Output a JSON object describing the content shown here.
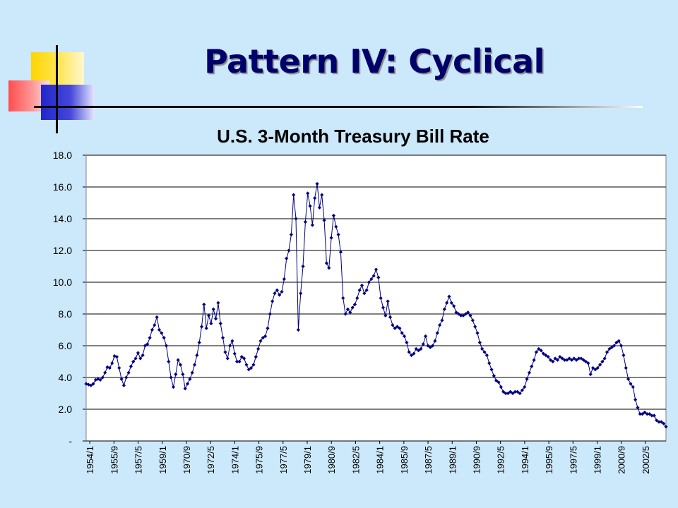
{
  "slide": {
    "title": "Pattern IV: Cyclical"
  },
  "colors": {
    "background": "#cce8fb",
    "title": "#00006a",
    "series": "#000080"
  },
  "chart_data": {
    "type": "line",
    "title": "U.S. 3-Month Treasury Bill Rate",
    "xlabel": "",
    "ylabel": "",
    "ylim": [
      0,
      18
    ],
    "yticks": [
      {
        "value": 0,
        "label": "-"
      },
      {
        "value": 2,
        "label": "2.0"
      },
      {
        "value": 4,
        "label": "4.0"
      },
      {
        "value": 6,
        "label": "6.0"
      },
      {
        "value": 8,
        "label": "8.0"
      },
      {
        "value": 10,
        "label": "10.0"
      },
      {
        "value": 12,
        "label": "12.0"
      },
      {
        "value": 14,
        "label": "14.0"
      },
      {
        "value": 16,
        "label": "16.0"
      },
      {
        "value": 18,
        "label": "18.0"
      }
    ],
    "xticks": [
      "1954/1",
      "1955/9",
      "1957/5",
      "1959/1",
      "1970/9",
      "1972/5",
      "1974/1",
      "1975/9",
      "1977/5",
      "1979/1",
      "1980/9",
      "1982/5",
      "1984/1",
      "1985/9",
      "1987/5",
      "1989/1",
      "1990/9",
      "1992/5",
      "1994/1",
      "1995/9",
      "1997/5",
      "1999/1",
      "2000/9",
      "2002/5"
    ],
    "grid": true,
    "legend": "none",
    "series": [
      {
        "marker": "diamond",
        "points": [
          [
            0,
            3.6
          ],
          [
            1,
            3.55
          ],
          [
            2,
            3.5
          ],
          [
            3,
            3.6
          ],
          [
            4,
            3.85
          ],
          [
            5,
            3.9
          ],
          [
            6,
            3.85
          ],
          [
            7,
            4.0
          ],
          [
            8,
            4.3
          ],
          [
            9,
            4.65
          ],
          [
            10,
            4.6
          ],
          [
            11,
            4.9
          ],
          [
            12,
            5.35
          ],
          [
            13,
            5.3
          ],
          [
            14,
            4.6
          ],
          [
            15,
            3.9
          ],
          [
            16,
            3.5
          ],
          [
            17,
            4.0
          ],
          [
            18,
            4.3
          ],
          [
            19,
            4.7
          ],
          [
            20,
            5.0
          ],
          [
            21,
            5.2
          ],
          [
            22,
            5.55
          ],
          [
            23,
            5.2
          ],
          [
            24,
            5.4
          ],
          [
            25,
            6.0
          ],
          [
            26,
            6.1
          ],
          [
            27,
            6.5
          ],
          [
            28,
            7.0
          ],
          [
            29,
            7.3
          ],
          [
            30,
            7.8
          ],
          [
            31,
            7.0
          ],
          [
            32,
            6.8
          ],
          [
            33,
            6.5
          ],
          [
            34,
            6.0
          ],
          [
            35,
            5.0
          ],
          [
            36,
            4.0
          ],
          [
            37,
            3.4
          ],
          [
            38,
            4.2
          ],
          [
            39,
            5.1
          ],
          [
            40,
            4.8
          ],
          [
            41,
            4.2
          ],
          [
            42,
            3.3
          ],
          [
            43,
            3.6
          ],
          [
            44,
            3.9
          ],
          [
            45,
            4.3
          ],
          [
            46,
            4.8
          ],
          [
            47,
            5.4
          ],
          [
            48,
            6.2
          ],
          [
            49,
            7.2
          ],
          [
            50,
            8.6
          ],
          [
            51,
            7.1
          ],
          [
            52,
            7.9
          ],
          [
            53,
            7.4
          ],
          [
            54,
            8.3
          ],
          [
            55,
            7.7
          ],
          [
            56,
            8.7
          ],
          [
            57,
            7.4
          ],
          [
            58,
            6.5
          ],
          [
            59,
            5.6
          ],
          [
            60,
            5.2
          ],
          [
            61,
            6.0
          ],
          [
            62,
            6.3
          ],
          [
            63,
            5.5
          ],
          [
            64,
            5.0
          ],
          [
            65,
            5.0
          ],
          [
            66,
            5.3
          ],
          [
            67,
            5.2
          ],
          [
            68,
            4.8
          ],
          [
            69,
            4.5
          ],
          [
            70,
            4.6
          ],
          [
            71,
            4.8
          ],
          [
            72,
            5.3
          ],
          [
            73,
            5.8
          ],
          [
            74,
            6.3
          ],
          [
            75,
            6.5
          ],
          [
            76,
            6.6
          ],
          [
            77,
            7.1
          ],
          [
            78,
            8.0
          ],
          [
            79,
            8.8
          ],
          [
            80,
            9.3
          ],
          [
            81,
            9.5
          ],
          [
            82,
            9.2
          ],
          [
            83,
            9.4
          ],
          [
            84,
            10.2
          ],
          [
            85,
            11.5
          ],
          [
            86,
            12.0
          ],
          [
            87,
            13.0
          ],
          [
            88,
            15.5
          ],
          [
            89,
            14.0
          ],
          [
            90,
            7.0
          ],
          [
            91,
            9.3
          ],
          [
            92,
            11.0
          ],
          [
            93,
            13.8
          ],
          [
            94,
            15.6
          ],
          [
            95,
            14.8
          ],
          [
            96,
            13.6
          ],
          [
            97,
            15.3
          ],
          [
            98,
            16.2
          ],
          [
            99,
            14.7
          ],
          [
            100,
            15.5
          ],
          [
            101,
            13.9
          ],
          [
            102,
            11.2
          ],
          [
            103,
            10.9
          ],
          [
            104,
            12.8
          ],
          [
            105,
            14.2
          ],
          [
            106,
            13.5
          ],
          [
            107,
            13.0
          ],
          [
            108,
            11.9
          ],
          [
            109,
            9.0
          ],
          [
            110,
            8.0
          ],
          [
            111,
            8.3
          ],
          [
            112,
            8.1
          ],
          [
            113,
            8.4
          ],
          [
            114,
            8.6
          ],
          [
            115,
            9.0
          ],
          [
            116,
            9.5
          ],
          [
            117,
            9.8
          ],
          [
            118,
            9.3
          ],
          [
            119,
            9.5
          ],
          [
            120,
            10.0
          ],
          [
            121,
            10.2
          ],
          [
            122,
            10.4
          ],
          [
            123,
            10.8
          ],
          [
            124,
            10.3
          ],
          [
            125,
            9.0
          ],
          [
            126,
            8.4
          ],
          [
            127,
            7.9
          ],
          [
            128,
            8.8
          ],
          [
            129,
            7.8
          ],
          [
            130,
            7.3
          ],
          [
            131,
            7.1
          ],
          [
            132,
            7.2
          ],
          [
            133,
            7.1
          ],
          [
            134,
            6.8
          ],
          [
            135,
            6.6
          ],
          [
            136,
            6.2
          ],
          [
            137,
            5.6
          ],
          [
            138,
            5.4
          ],
          [
            139,
            5.5
          ],
          [
            140,
            5.8
          ],
          [
            141,
            5.7
          ],
          [
            142,
            5.8
          ],
          [
            143,
            6.1
          ],
          [
            144,
            6.6
          ],
          [
            145,
            6.0
          ],
          [
            146,
            5.9
          ],
          [
            147,
            6.0
          ],
          [
            148,
            6.3
          ],
          [
            149,
            6.8
          ],
          [
            150,
            7.3
          ],
          [
            151,
            7.6
          ],
          [
            152,
            8.3
          ],
          [
            153,
            8.7
          ],
          [
            154,
            9.1
          ],
          [
            155,
            8.7
          ],
          [
            156,
            8.5
          ],
          [
            157,
            8.1
          ],
          [
            158,
            8.0
          ],
          [
            159,
            7.9
          ],
          [
            160,
            7.9
          ],
          [
            161,
            8.0
          ],
          [
            162,
            8.1
          ],
          [
            163,
            7.9
          ],
          [
            164,
            7.6
          ],
          [
            165,
            7.2
          ],
          [
            166,
            6.8
          ],
          [
            167,
            6.2
          ],
          [
            168,
            5.8
          ],
          [
            169,
            5.6
          ],
          [
            170,
            5.4
          ],
          [
            171,
            4.9
          ],
          [
            172,
            4.5
          ],
          [
            173,
            4.1
          ],
          [
            174,
            3.8
          ],
          [
            175,
            3.7
          ],
          [
            176,
            3.4
          ],
          [
            177,
            3.1
          ],
          [
            178,
            3.0
          ],
          [
            179,
            3.0
          ],
          [
            180,
            3.1
          ],
          [
            181,
            3.0
          ],
          [
            182,
            3.1
          ],
          [
            183,
            3.1
          ],
          [
            184,
            3.0
          ],
          [
            185,
            3.2
          ],
          [
            186,
            3.4
          ],
          [
            187,
            3.9
          ],
          [
            188,
            4.3
          ],
          [
            189,
            4.7
          ],
          [
            190,
            5.1
          ],
          [
            191,
            5.6
          ],
          [
            192,
            5.8
          ],
          [
            193,
            5.7
          ],
          [
            194,
            5.5
          ],
          [
            195,
            5.4
          ],
          [
            196,
            5.3
          ],
          [
            197,
            5.1
          ],
          [
            198,
            5.0
          ],
          [
            199,
            5.2
          ],
          [
            200,
            5.1
          ],
          [
            201,
            5.3
          ],
          [
            202,
            5.2
          ],
          [
            203,
            5.1
          ],
          [
            204,
            5.1
          ],
          [
            205,
            5.2
          ],
          [
            206,
            5.1
          ],
          [
            207,
            5.2
          ],
          [
            208,
            5.1
          ],
          [
            209,
            5.2
          ],
          [
            210,
            5.2
          ],
          [
            211,
            5.1
          ],
          [
            212,
            5.0
          ],
          [
            213,
            4.9
          ],
          [
            214,
            4.2
          ],
          [
            215,
            4.6
          ],
          [
            216,
            4.5
          ],
          [
            217,
            4.6
          ],
          [
            218,
            4.8
          ],
          [
            219,
            5.0
          ],
          [
            220,
            5.2
          ],
          [
            221,
            5.6
          ],
          [
            222,
            5.8
          ],
          [
            223,
            5.9
          ],
          [
            224,
            6.0
          ],
          [
            225,
            6.2
          ],
          [
            226,
            6.3
          ],
          [
            227,
            6.0
          ],
          [
            228,
            5.4
          ],
          [
            229,
            4.6
          ],
          [
            230,
            3.9
          ],
          [
            231,
            3.6
          ],
          [
            232,
            3.4
          ],
          [
            233,
            2.6
          ],
          [
            234,
            2.1
          ],
          [
            235,
            1.7
          ],
          [
            236,
            1.7
          ],
          [
            237,
            1.8
          ],
          [
            238,
            1.7
          ],
          [
            239,
            1.7
          ],
          [
            240,
            1.6
          ],
          [
            241,
            1.6
          ],
          [
            242,
            1.3
          ],
          [
            243,
            1.2
          ],
          [
            244,
            1.2
          ],
          [
            245,
            1.1
          ],
          [
            246,
            0.9
          ]
        ]
      }
    ]
  }
}
